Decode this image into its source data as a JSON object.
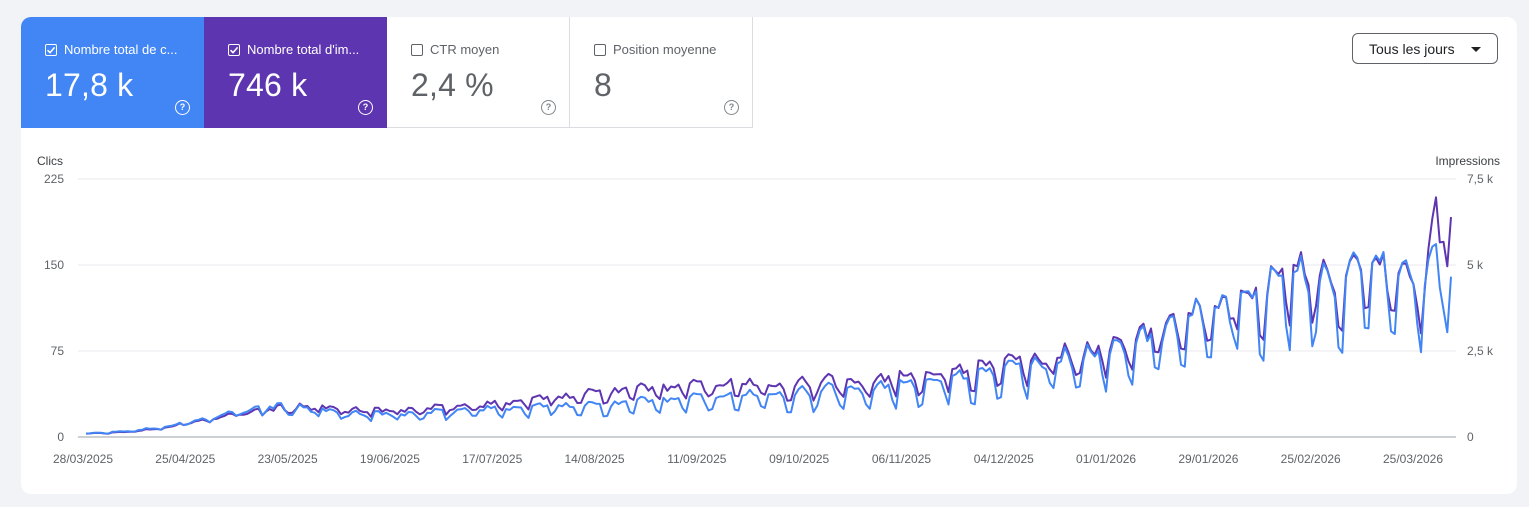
{
  "metrics": {
    "clicks": {
      "label": "Nombre total de c...",
      "value": "17,8 k",
      "checked": true,
      "color": "#4285f4"
    },
    "impressions": {
      "label": "Nombre total d'im...",
      "value": "746 k",
      "checked": true,
      "color": "#5e35b1"
    },
    "ctr": {
      "label": "CTR moyen",
      "value": "2,4 %",
      "checked": false
    },
    "position": {
      "label": "Position moyenne",
      "value": "8",
      "checked": false
    }
  },
  "help_glyph": "?",
  "date_filter": {
    "label": "Tous les jours"
  },
  "chart_data": {
    "type": "line",
    "x_start": "28/03/2025",
    "x_end": "26/03/2026",
    "xtick_labels": [
      "28/03/2025",
      "25/04/2025",
      "23/05/2025",
      "19/06/2025",
      "17/07/2025",
      "14/08/2025",
      "11/09/2025",
      "09/10/2025",
      "06/11/2025",
      "04/12/2025",
      "01/01/2026",
      "29/01/2026",
      "25/02/2026",
      "25/03/2026"
    ],
    "y_left": {
      "label": "Clics",
      "ticks": [
        "0",
        "75",
        "150",
        "225"
      ],
      "ylim": [
        0,
        225
      ]
    },
    "y_right": {
      "label": "Impressions",
      "ticks": [
        "0",
        "2,5 k",
        "5 k",
        "7,5 k"
      ],
      "ylim": [
        0,
        7500
      ]
    },
    "grid": true,
    "series": [
      {
        "name": "Clics",
        "axis": "left",
        "color": "#4285f4",
        "keypoints": [
          [
            0,
            3
          ],
          [
            7,
            4
          ],
          [
            14,
            6
          ],
          [
            21,
            9
          ],
          [
            28,
            13
          ],
          [
            35,
            18
          ],
          [
            42,
            22
          ],
          [
            49,
            26
          ],
          [
            56,
            25
          ],
          [
            63,
            22
          ],
          [
            70,
            20
          ],
          [
            77,
            20
          ],
          [
            84,
            19
          ],
          [
            91,
            20
          ],
          [
            98,
            22
          ],
          [
            105,
            24
          ],
          [
            112,
            24
          ],
          [
            119,
            25
          ],
          [
            126,
            27
          ],
          [
            133,
            27
          ],
          [
            140,
            28
          ],
          [
            147,
            30
          ],
          [
            154,
            31
          ],
          [
            161,
            32
          ],
          [
            168,
            34
          ],
          [
            175,
            35
          ],
          [
            182,
            37
          ],
          [
            189,
            37
          ],
          [
            196,
            38
          ],
          [
            203,
            40
          ],
          [
            210,
            42
          ],
          [
            217,
            44
          ],
          [
            224,
            47
          ],
          [
            231,
            50
          ],
          [
            238,
            52
          ],
          [
            245,
            55
          ],
          [
            252,
            60
          ],
          [
            259,
            62
          ],
          [
            266,
            68
          ],
          [
            273,
            72
          ],
          [
            280,
            78
          ],
          [
            287,
            85
          ],
          [
            294,
            95
          ],
          [
            301,
            105
          ],
          [
            308,
            115
          ],
          [
            315,
            125
          ],
          [
            322,
            130
          ],
          [
            329,
            132
          ],
          [
            336,
            130
          ],
          [
            343,
            133
          ],
          [
            350,
            135
          ],
          [
            357,
            130
          ],
          [
            360,
            145
          ],
          [
            364,
            140
          ]
        ]
      },
      {
        "name": "Impressions",
        "axis": "right",
        "color": "#5e35b1",
        "keypoints": [
          [
            0,
            100
          ],
          [
            7,
            120
          ],
          [
            14,
            180
          ],
          [
            21,
            280
          ],
          [
            28,
            420
          ],
          [
            35,
            560
          ],
          [
            42,
            680
          ],
          [
            49,
            800
          ],
          [
            56,
            860
          ],
          [
            63,
            820
          ],
          [
            70,
            780
          ],
          [
            77,
            760
          ],
          [
            84,
            760
          ],
          [
            91,
            800
          ],
          [
            98,
            860
          ],
          [
            105,
            920
          ],
          [
            112,
            980
          ],
          [
            119,
            1060
          ],
          [
            126,
            1160
          ],
          [
            133,
            1260
          ],
          [
            140,
            1330
          ],
          [
            147,
            1370
          ],
          [
            154,
            1400
          ],
          [
            161,
            1440
          ],
          [
            168,
            1500
          ],
          [
            175,
            1520
          ],
          [
            182,
            1520
          ],
          [
            189,
            1520
          ],
          [
            196,
            1540
          ],
          [
            203,
            1580
          ],
          [
            210,
            1640
          ],
          [
            217,
            1720
          ],
          [
            224,
            1800
          ],
          [
            231,
            1880
          ],
          [
            238,
            1980
          ],
          [
            245,
            2060
          ],
          [
            252,
            2160
          ],
          [
            259,
            2260
          ],
          [
            266,
            2400
          ],
          [
            273,
            2560
          ],
          [
            280,
            2760
          ],
          [
            287,
            3000
          ],
          [
            294,
            3300
          ],
          [
            301,
            3600
          ],
          [
            308,
            3950
          ],
          [
            315,
            4300
          ],
          [
            322,
            4600
          ],
          [
            329,
            4650
          ],
          [
            336,
            4450
          ],
          [
            343,
            4500
          ],
          [
            350,
            4650
          ],
          [
            357,
            4300
          ],
          [
            360,
            6200
          ],
          [
            364,
            6500
          ]
        ]
      }
    ]
  }
}
